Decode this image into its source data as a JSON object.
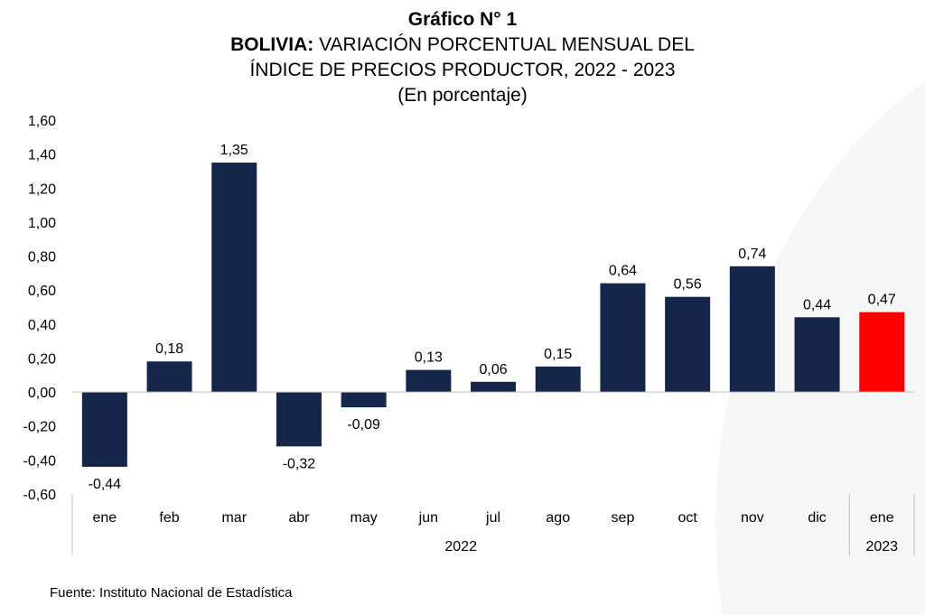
{
  "title": {
    "line1": "Gráfico N° 1",
    "line2_bold": "BOLIVIA:",
    "line2_rest": " VARIACIÓN PORCENTUAL MENSUAL DEL",
    "line3": "ÍNDICE DE PRECIOS PRODUCTOR, 2022 - 2023",
    "line4": "(En porcentaje)"
  },
  "source": "Fuente: Instituto Nacional de Estadística",
  "colors": {
    "bar": "#14274a",
    "highlight": "#ff0000",
    "axis": "#bfbfbf"
  },
  "chart_data": {
    "type": "bar",
    "categories": [
      "ene",
      "feb",
      "mar",
      "abr",
      "may",
      "jun",
      "jul",
      "ago",
      "sep",
      "oct",
      "nov",
      "dic",
      "ene"
    ],
    "values": [
      -0.44,
      0.18,
      1.35,
      -0.32,
      -0.09,
      0.13,
      0.06,
      0.15,
      0.64,
      0.56,
      0.74,
      0.44,
      0.47
    ],
    "value_labels": [
      "-0,44",
      "0,18",
      "1,35",
      "-0,32",
      "-0,09",
      "0,13",
      "0,06",
      "0,15",
      "0,64",
      "0,56",
      "0,74",
      "0,44",
      "0,47"
    ],
    "highlight_index": 12,
    "groups": [
      {
        "label": "2022",
        "start": 0,
        "end": 11
      },
      {
        "label": "2023",
        "start": 12,
        "end": 12
      }
    ],
    "ylim": [
      -0.6,
      1.6
    ],
    "yticks": [
      1.6,
      1.4,
      1.2,
      1.0,
      0.8,
      0.6,
      0.4,
      0.2,
      0.0,
      -0.2,
      -0.4,
      -0.6
    ],
    "ytick_labels": [
      "1,60",
      "1,40",
      "1,20",
      "1,00",
      "0,80",
      "0,60",
      "0,40",
      "0,20",
      "0,00",
      "-0,20",
      "-0,40",
      "-0,60"
    ],
    "xlabel": "",
    "ylabel": "",
    "grid": false,
    "legend": "none"
  }
}
